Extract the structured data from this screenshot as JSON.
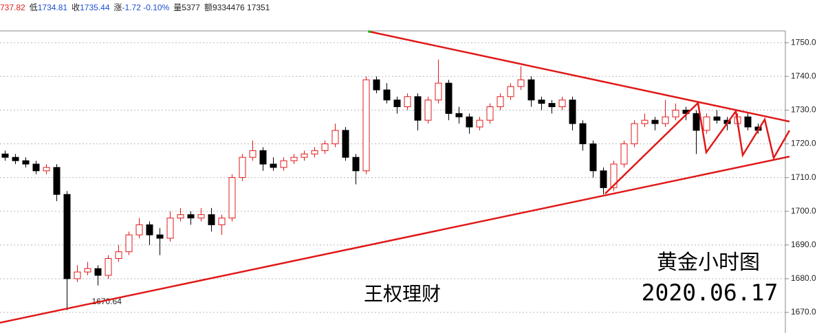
{
  "header": [
    {
      "value": "737.82",
      "color": "#e02020"
    },
    {
      "label": "低",
      "value": "1734.81",
      "color": "#1a4fd0"
    },
    {
      "label": "收",
      "value": "1735.44",
      "color": "#1a4fd0"
    },
    {
      "label": "涨",
      "value": "-1.72 -0.10%",
      "color": "#1a4fd0"
    },
    {
      "label": "量",
      "value": "5377",
      "color": "#222222"
    },
    {
      "label": "额",
      "value": "9334476 17351",
      "color": "#222222"
    }
  ],
  "chart_data": {
    "type": "candlestick",
    "open": [
      1717,
      1716,
      1715,
      1714,
      1712,
      1713,
      1705,
      1680,
      1682,
      1683,
      1681,
      1686,
      1688,
      1693,
      1696,
      1693,
      1692,
      1698,
      1699,
      1698,
      1699,
      1696,
      1698,
      1710,
      1716,
      1718,
      1714,
      1713,
      1715,
      1716,
      1717,
      1718,
      1720,
      1724,
      1716,
      1712,
      1739,
      1736,
      1733,
      1731,
      1734,
      1727,
      1733,
      1738,
      1729,
      1728,
      1725,
      1727,
      1731,
      1734,
      1737,
      1739,
      1733,
      1732,
      1731,
      1733,
      1726,
      1720,
      1712,
      1707,
      1714,
      1720,
      1726,
      1727,
      1726,
      1728,
      1730,
      1729,
      1724,
      1728,
      1727,
      1726,
      1728,
      1725
    ],
    "high": [
      1718,
      1717,
      1716,
      1715,
      1714,
      1714,
      1706,
      1684,
      1685,
      1684,
      1687,
      1690,
      1694,
      1698,
      1697,
      1695,
      1700,
      1701,
      1700,
      1701,
      1701,
      1699,
      1711,
      1717,
      1721,
      1719,
      1716,
      1716,
      1717,
      1718,
      1719,
      1721,
      1726,
      1725,
      1717,
      1740,
      1740,
      1738,
      1734,
      1735,
      1735,
      1734,
      1745,
      1739,
      1731,
      1729,
      1728,
      1732,
      1735,
      1738,
      1743,
      1740,
      1734,
      1733,
      1734,
      1734,
      1727,
      1721,
      1713,
      1715,
      1721,
      1727,
      1729,
      1728,
      1733,
      1732,
      1731,
      1730,
      1729,
      1730,
      1728,
      1729,
      1729,
      1726
    ],
    "low": [
      1715,
      1714,
      1713,
      1711,
      1711,
      1703,
      1670.64,
      1679,
      1681,
      1678,
      1680,
      1685,
      1687,
      1692,
      1690,
      1687,
      1691,
      1697,
      1696,
      1697,
      1694,
      1693,
      1697,
      1709,
      1715,
      1712,
      1712,
      1712,
      1714,
      1715,
      1716,
      1717,
      1719,
      1715,
      1708,
      1711,
      1735,
      1732,
      1729,
      1730,
      1724,
      1726,
      1732,
      1727,
      1726,
      1723,
      1724,
      1726,
      1730,
      1733,
      1736,
      1731,
      1730,
      1729,
      1730,
      1724,
      1718,
      1710,
      1705,
      1706,
      1713,
      1719,
      1725,
      1724,
      1725,
      1727,
      1727,
      1717,
      1723,
      1726,
      1724,
      1725,
      1724,
      1723
    ],
    "close": [
      1716,
      1715,
      1714,
      1712,
      1713,
      1705,
      1680,
      1682,
      1683,
      1681,
      1686,
      1688,
      1693,
      1696,
      1693,
      1692,
      1698,
      1699,
      1698,
      1699,
      1696,
      1698,
      1710,
      1716,
      1718,
      1714,
      1713,
      1715,
      1716,
      1717,
      1718,
      1720,
      1724,
      1716,
      1712,
      1739,
      1736,
      1733,
      1731,
      1734,
      1727,
      1733,
      1738,
      1729,
      1728,
      1725,
      1727,
      1731,
      1734,
      1737,
      1739,
      1733,
      1732,
      1731,
      1733,
      1726,
      1720,
      1712,
      1707,
      1714,
      1720,
      1726,
      1727,
      1726,
      1728,
      1730,
      1729,
      1724,
      1728,
      1727,
      1726,
      1728,
      1725,
      1724
    ],
    "up_color": "#e01818",
    "down_color": "#000000",
    "ylim": [
      1663.9,
      1753.5
    ],
    "yticks": [
      {
        "value": 1670,
        "label": "1670.0"
      },
      {
        "value": 1680,
        "label": "1680.0"
      },
      {
        "value": 1690,
        "label": "1690.0"
      },
      {
        "value": 1700,
        "label": "1700.0"
      },
      {
        "value": 1710,
        "label": "1710.0"
      },
      {
        "value": 1720,
        "label": "1720.0"
      },
      {
        "value": 1730,
        "label": "1730.0"
      },
      {
        "value": 1740,
        "label": "1740.0"
      },
      {
        "value": 1750,
        "label": "1750.0"
      }
    ],
    "grid": true,
    "low_label_index": 6,
    "annotations": [
      "王权理财",
      "黄金小时图",
      "2020.06.17"
    ]
  }
}
